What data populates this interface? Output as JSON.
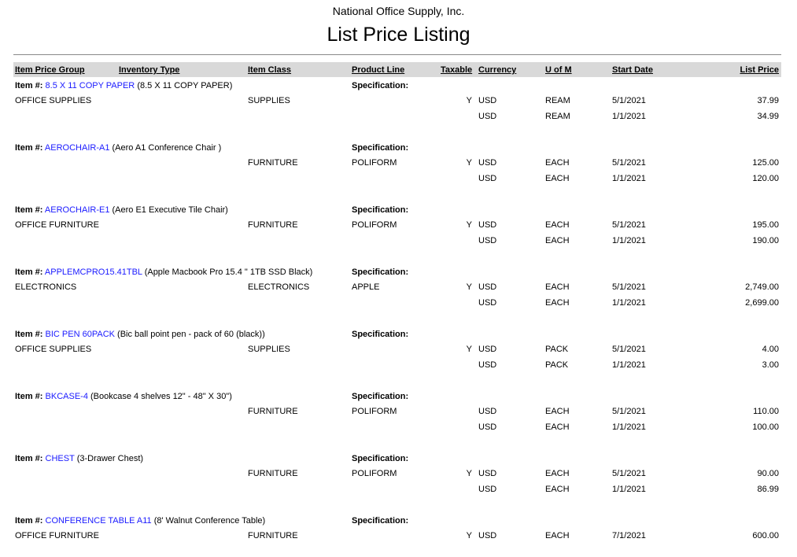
{
  "report": {
    "company": "National Office Supply, Inc.",
    "title": "List Price Listing",
    "link_color": "#1a1aff",
    "header_bg": "#d9d9d9"
  },
  "columns": {
    "item_price_group": "Item Price Group",
    "inventory_type": "Inventory Type",
    "item_class": "Item Class",
    "product_line": "Product Line",
    "taxable": "Taxable",
    "currency": "Currency",
    "uom": "U of M",
    "start_date": "Start Date",
    "list_price": "List Price"
  },
  "labels": {
    "item": "Item #:",
    "specification": "Specification:"
  },
  "items": [
    {
      "id": "8.5 X 11 COPY PAPER",
      "desc": "(8.5 X 11 COPY PAPER)",
      "group": "OFFICE SUPPLIES",
      "inv": "",
      "cls": "SUPPLIES",
      "line": "",
      "prices": [
        {
          "tax": "Y",
          "cur": "USD",
          "uom": "REAM",
          "date": "5/1/2021",
          "price": "37.99"
        },
        {
          "tax": "",
          "cur": "USD",
          "uom": "REAM",
          "date": "1/1/2021",
          "price": "34.99"
        }
      ]
    },
    {
      "id": "AEROCHAIR-A1",
      "desc": "(Aero A1 Conference Chair )",
      "group": "",
      "inv": "",
      "cls": "FURNITURE",
      "line": "POLIFORM",
      "prices": [
        {
          "tax": "Y",
          "cur": "USD",
          "uom": "EACH",
          "date": "5/1/2021",
          "price": "125.00"
        },
        {
          "tax": "",
          "cur": "USD",
          "uom": "EACH",
          "date": "1/1/2021",
          "price": "120.00"
        }
      ]
    },
    {
      "id": "AEROCHAIR-E1",
      "desc": "(Aero E1 Executive Tile Chair)",
      "group": "OFFICE FURNITURE",
      "inv": "",
      "cls": "FURNITURE",
      "line": "POLIFORM",
      "prices": [
        {
          "tax": "Y",
          "cur": "USD",
          "uom": "EACH",
          "date": "5/1/2021",
          "price": "195.00"
        },
        {
          "tax": "",
          "cur": "USD",
          "uom": "EACH",
          "date": "1/1/2021",
          "price": "190.00"
        }
      ]
    },
    {
      "id": "APPLEMCPRO15.41TBL",
      "desc": "(Apple Macbook Pro 15.4 \" 1TB SSD Black)",
      "group": "ELECTRONICS",
      "inv": "",
      "cls": "ELECTRONICS",
      "line": "APPLE",
      "prices": [
        {
          "tax": "Y",
          "cur": "USD",
          "uom": "EACH",
          "date": "5/1/2021",
          "price": "2,749.00"
        },
        {
          "tax": "",
          "cur": "USD",
          "uom": "EACH",
          "date": "1/1/2021",
          "price": "2,699.00"
        }
      ]
    },
    {
      "id": "BIC PEN 60PACK",
      "desc": "(Bic ball point pen - pack of 60 (black))",
      "group": "OFFICE SUPPLIES",
      "inv": "",
      "cls": "SUPPLIES",
      "line": "",
      "prices": [
        {
          "tax": "Y",
          "cur": "USD",
          "uom": "PACK",
          "date": "5/1/2021",
          "price": "4.00"
        },
        {
          "tax": "",
          "cur": "USD",
          "uom": "PACK",
          "date": "1/1/2021",
          "price": "3.00"
        }
      ]
    },
    {
      "id": "BKCASE-4",
      "desc": "(Bookcase 4 shelves 12\" - 48\" X 30\")",
      "group": "",
      "inv": "",
      "cls": "FURNITURE",
      "line": "POLIFORM",
      "prices": [
        {
          "tax": "",
          "cur": "USD",
          "uom": "EACH",
          "date": "5/1/2021",
          "price": "110.00"
        },
        {
          "tax": "",
          "cur": "USD",
          "uom": "EACH",
          "date": "1/1/2021",
          "price": "100.00"
        }
      ]
    },
    {
      "id": "CHEST",
      "desc": "(3-Drawer Chest)",
      "group": "",
      "inv": "",
      "cls": "FURNITURE",
      "line": "POLIFORM",
      "prices": [
        {
          "tax": "Y",
          "cur": "USD",
          "uom": "EACH",
          "date": "5/1/2021",
          "price": "90.00"
        },
        {
          "tax": "",
          "cur": "USD",
          "uom": "EACH",
          "date": "1/1/2021",
          "price": "86.99"
        }
      ]
    },
    {
      "id": "CONFERENCE TABLE A11",
      "desc": "(8' Walnut Conference Table)",
      "group": "OFFICE FURNITURE",
      "inv": "",
      "cls": "FURNITURE",
      "line": "",
      "prices": [
        {
          "tax": "Y",
          "cur": "USD",
          "uom": "EACH",
          "date": "7/1/2021",
          "price": "600.00"
        }
      ]
    }
  ]
}
